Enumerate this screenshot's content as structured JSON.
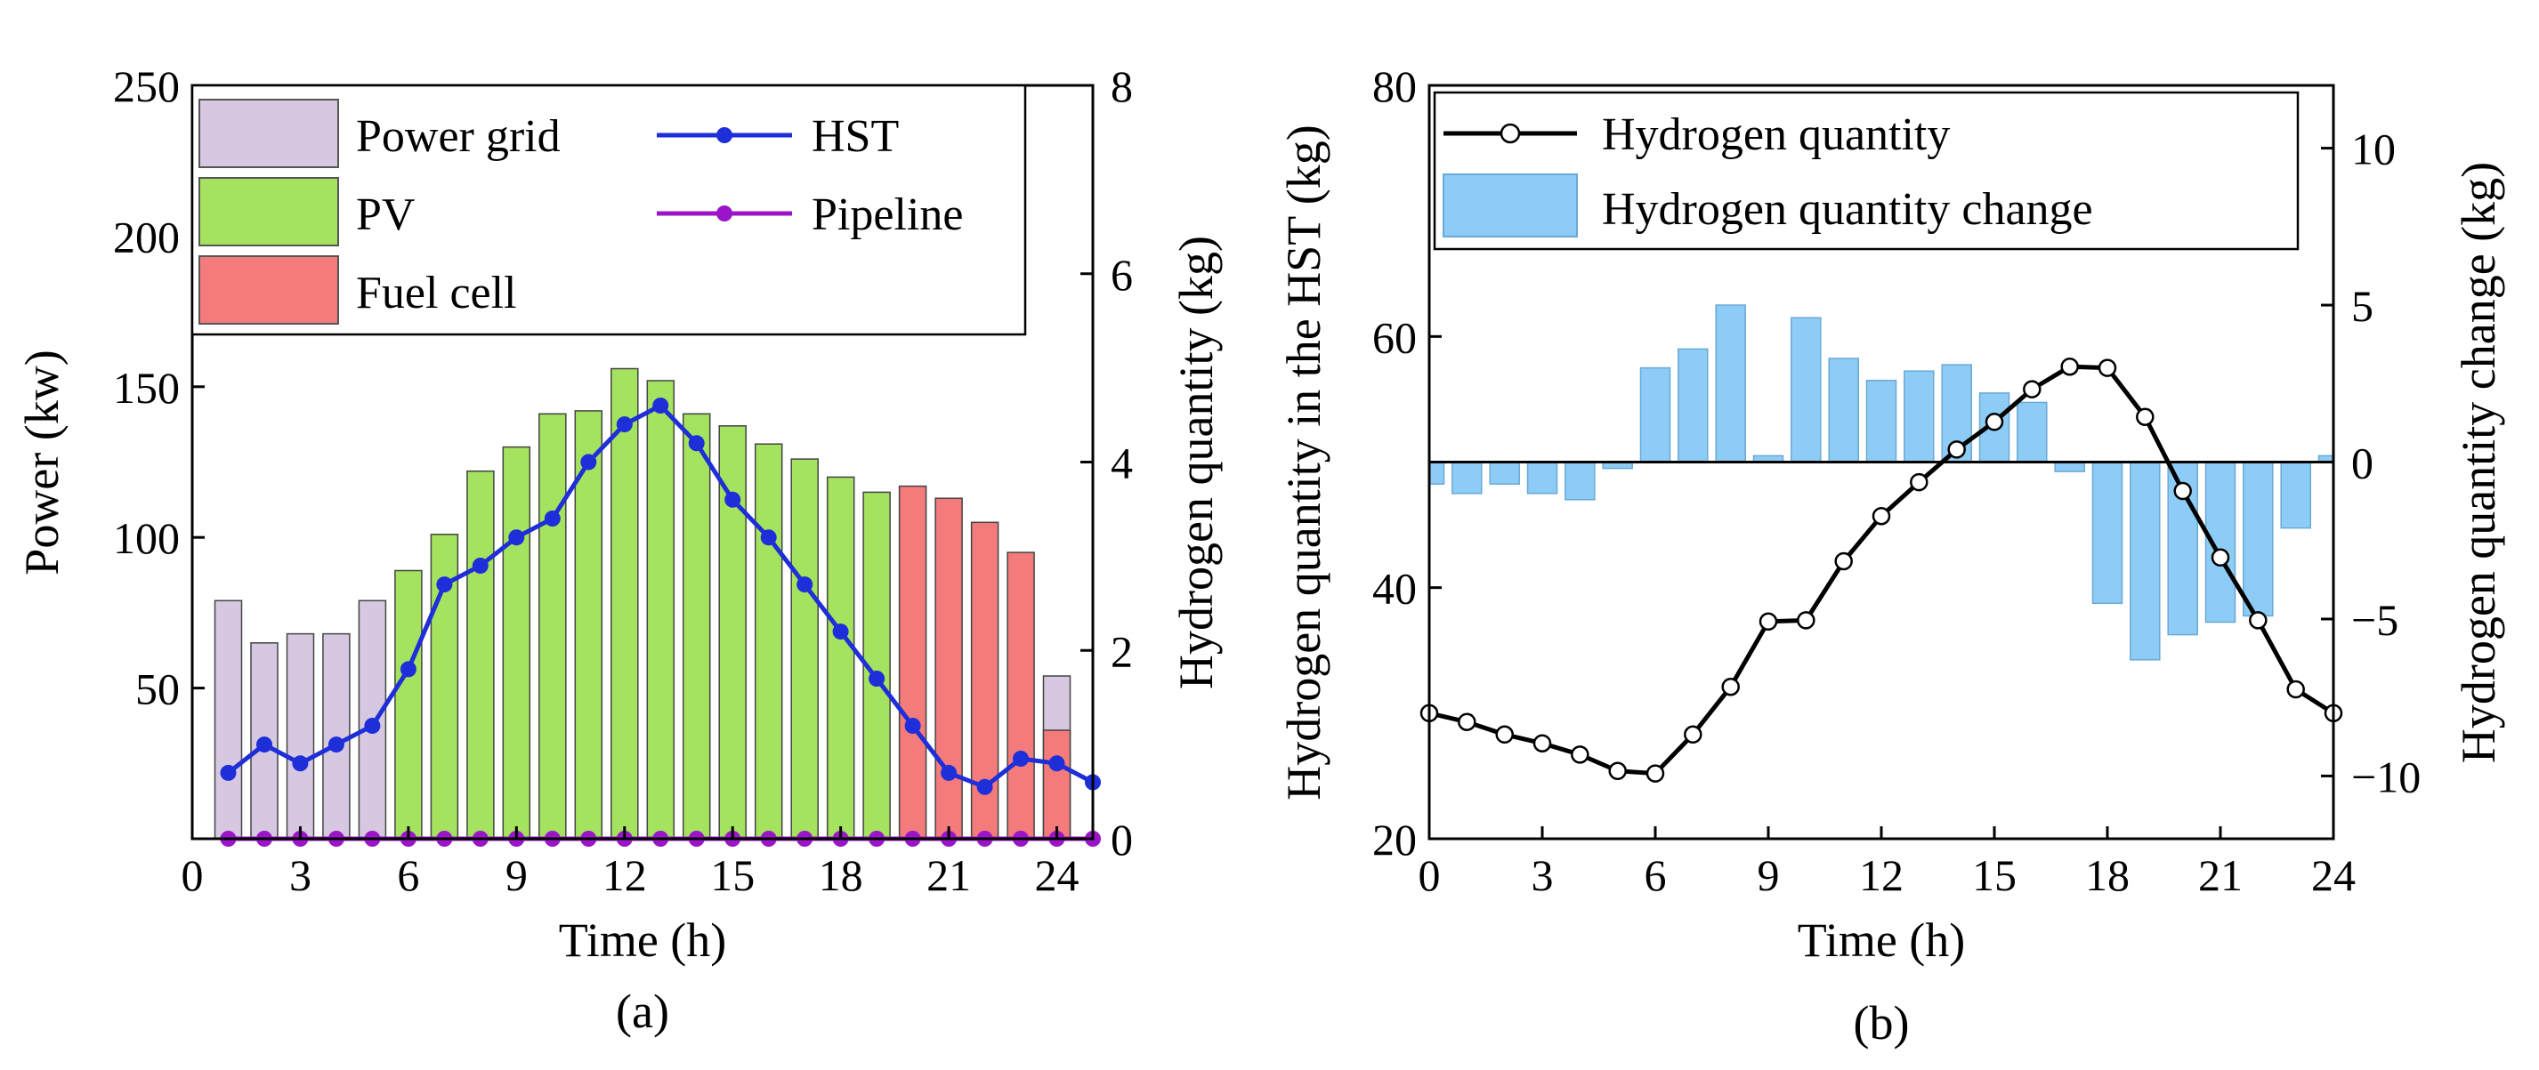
{
  "colors": {
    "grid_power": "#D6C8E0",
    "pv": "#A4E260",
    "fuel_cell": "#F37B7B",
    "hst_line": "#1E2ED8",
    "pipeline_line": "#9B15C8",
    "hq_line": "#000000",
    "hq_change_bar": "#8DCDF5"
  },
  "chart_data": [
    {
      "type": "bar",
      "panel_label": "(a)",
      "xlabel": "Time (h)",
      "ylabel": "Power (kw)",
      "y2label": "Hydrogen quantity (kg)",
      "xlim": [
        0,
        25
      ],
      "ylim": [
        0,
        250
      ],
      "y2lim": [
        0,
        8
      ],
      "xticks": [
        "0",
        "3",
        "6",
        "9",
        "12",
        "15",
        "18",
        "21",
        "24"
      ],
      "yticks": [
        "50",
        "100",
        "150",
        "200",
        "250"
      ],
      "y2ticks": [
        "0",
        "2",
        "4",
        "6",
        "8"
      ],
      "legend_position": "top-left",
      "x": [
        1,
        2,
        3,
        4,
        5,
        6,
        7,
        8,
        9,
        10,
        11,
        12,
        13,
        14,
        15,
        16,
        17,
        18,
        19,
        20,
        21,
        22,
        23,
        24
      ],
      "series": [
        {
          "name": "Power grid",
          "kind": "bar",
          "values": [
            79,
            65,
            68,
            68,
            79,
            0,
            0,
            0,
            0,
            0,
            0,
            0,
            0,
            0,
            0,
            0,
            0,
            0,
            0,
            0,
            0,
            0,
            0,
            54
          ]
        },
        {
          "name": "PV",
          "kind": "bar",
          "values": [
            0,
            0,
            0,
            0,
            0,
            89,
            101,
            122,
            130,
            141,
            142,
            156,
            152,
            141,
            137,
            131,
            126,
            120,
            115,
            0,
            0,
            0,
            0,
            0
          ]
        },
        {
          "name": "Fuel cell",
          "kind": "bar",
          "values": [
            0,
            0,
            0,
            0,
            0,
            0,
            0,
            0,
            0,
            0,
            0,
            0,
            0,
            0,
            0,
            0,
            0,
            0,
            0,
            117,
            113,
            105,
            95,
            36
          ]
        },
        {
          "name": "HST",
          "kind": "line",
          "axis": "right",
          "x": [
            1,
            2,
            3,
            4,
            5,
            6,
            7,
            8,
            9,
            10,
            11,
            12,
            13,
            14,
            15,
            16,
            17,
            18,
            19,
            20,
            21,
            22,
            23,
            24,
            25
          ],
          "values": [
            0.7,
            1.0,
            0.8,
            1.0,
            1.2,
            1.8,
            2.7,
            2.9,
            3.2,
            3.4,
            4.0,
            4.4,
            4.6,
            4.2,
            3.6,
            3.2,
            2.7,
            2.2,
            1.7,
            1.2,
            0.7,
            0.55,
            0.85,
            0.8,
            0.6
          ]
        },
        {
          "name": "Pipeline",
          "kind": "line",
          "axis": "right",
          "x": [
            1,
            2,
            3,
            4,
            5,
            6,
            7,
            8,
            9,
            10,
            11,
            12,
            13,
            14,
            15,
            16,
            17,
            18,
            19,
            20,
            21,
            22,
            23,
            24,
            25
          ],
          "values": [
            0,
            0,
            0,
            0,
            0,
            0,
            0,
            0,
            0,
            0,
            0,
            0,
            0,
            0,
            0,
            0,
            0,
            0,
            0,
            0,
            0,
            0,
            0,
            0,
            0
          ]
        }
      ]
    },
    {
      "type": "bar",
      "panel_label": "(b)",
      "xlabel": "Time (h)",
      "ylabel": "Hydrogen quantity in the HST (kg)",
      "y2label": "Hydrogen quantity change (kg)",
      "xlim": [
        0,
        24
      ],
      "ylim": [
        20,
        80
      ],
      "y2lim": [
        -12,
        12
      ],
      "xticks": [
        "0",
        "3",
        "6",
        "9",
        "12",
        "15",
        "18",
        "21",
        "24"
      ],
      "yticks": [
        "20",
        "40",
        "60",
        "80"
      ],
      "y2ticks": [
        "−10",
        "−5",
        "0",
        "5",
        "10"
      ],
      "legend_position": "top",
      "series": [
        {
          "name": "Hydrogen quantity",
          "kind": "line",
          "x": [
            0,
            1,
            2,
            3,
            4,
            5,
            6,
            7,
            8,
            9,
            10,
            11,
            12,
            13,
            14,
            15,
            16,
            17,
            18,
            19,
            20,
            21,
            22,
            23,
            24
          ],
          "values": [
            30,
            29.3,
            28.3,
            27.6,
            26.7,
            25.4,
            25.2,
            28.3,
            32.1,
            37.3,
            37.4,
            42.1,
            45.7,
            48.4,
            51.0,
            53.2,
            55.8,
            57.6,
            57.5,
            53.6,
            47.7,
            42.4,
            37.4,
            31.9,
            30.0
          ]
        },
        {
          "name": "Hydrogen quantity change",
          "kind": "bar",
          "axis": "right",
          "x": [
            0,
            1,
            2,
            3,
            4,
            5,
            6,
            7,
            8,
            9,
            10,
            11,
            12,
            13,
            14,
            15,
            16,
            17,
            18,
            19,
            20,
            21,
            22,
            23,
            24
          ],
          "values": [
            -0.7,
            -1.0,
            -0.7,
            -1.0,
            -1.2,
            -0.2,
            3.0,
            3.6,
            5.0,
            0.2,
            4.6,
            3.3,
            2.6,
            2.9,
            3.1,
            2.2,
            1.9,
            -0.3,
            -4.5,
            -6.3,
            -5.5,
            -5.1,
            -4.9,
            -2.1,
            0.2
          ]
        }
      ]
    }
  ]
}
